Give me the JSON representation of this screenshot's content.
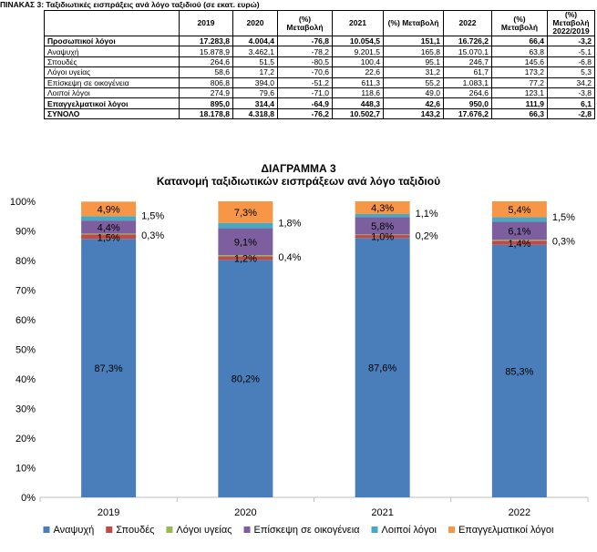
{
  "table": {
    "caption": "ΠΙΝΑΚΑΣ 3: Ταξιδιωτικές εισπράξεις ανά λόγο ταξιδιού (σε εκατ. ευρώ)",
    "headers": [
      "",
      "2019",
      "2020",
      "(%) Μεταβολή",
      "2021",
      "(%) Μεταβολή",
      "2022",
      "(%) Μεταβολή",
      "(%) Μεταβολή 2022/2019"
    ],
    "rows": [
      {
        "bold": true,
        "cells": [
          "Προσωπικοί λόγοι",
          "17.283,8",
          "4.004,4",
          "-76,8",
          "10.054,5",
          "151,1",
          "16.726,2",
          "66,4",
          "-3,2"
        ]
      },
      {
        "bold": false,
        "cells": [
          "Αναψυχή",
          "15.878,9",
          "3.462,1",
          "-78,2",
          "9.201,5",
          "165,8",
          "15.070,1",
          "63,8",
          "-5,1"
        ]
      },
      {
        "bold": false,
        "cells": [
          "Σπουδές",
          "264,6",
          "51,5",
          "-80,5",
          "100,4",
          "95,1",
          "246,7",
          "145,6",
          "-6,8"
        ]
      },
      {
        "bold": false,
        "cells": [
          "Λόγοι υγείας",
          "58,6",
          "17,2",
          "-70,6",
          "22,6",
          "31,2",
          "61,7",
          "173,2",
          "5,3"
        ]
      },
      {
        "bold": false,
        "cells": [
          "Επίσκεψη σε οικογένεια",
          "806,8",
          "394,0",
          "-51,2",
          "611,3",
          "55,2",
          "1.083,1",
          "77,2",
          "34,2"
        ]
      },
      {
        "bold": false,
        "cells": [
          "Λοιποί λόγοι",
          "274,9",
          "79,6",
          "-71,0",
          "118,6",
          "49,0",
          "264,6",
          "123,1",
          "-3,8"
        ]
      },
      {
        "bold": true,
        "cells": [
          "Επαγγελματικοί λόγοι",
          "895,0",
          "314,4",
          "-64,9",
          "448,3",
          "42,6",
          "950,0",
          "111,9",
          "6,1"
        ]
      },
      {
        "bold": true,
        "cells": [
          "ΣΥΝΟΛΟ",
          "18.178,8",
          "4.318,8",
          "-76,2",
          "10.502,7",
          "143,2",
          "17.676,2",
          "66,3",
          "-2,8"
        ]
      }
    ]
  },
  "chart_data": {
    "type": "bar",
    "stacked": true,
    "title": "ΔΙΑΓΡΑΜΜΑ 3",
    "subtitle": "Κατανομή ταξιδιωτικών εισπράξεων ανά λόγο ταξιδιού",
    "categories": [
      "2019",
      "2020",
      "2021",
      "2022"
    ],
    "ylim": [
      0,
      100
    ],
    "yticks": [
      "0%",
      "10%",
      "20%",
      "30%",
      "40%",
      "50%",
      "60%",
      "70%",
      "80%",
      "90%",
      "100%"
    ],
    "grid": false,
    "legend_position": "bottom",
    "series": [
      {
        "name": "Αναψυχή",
        "color": "#4a7ebb",
        "values": [
          87.3,
          80.2,
          87.6,
          85.3
        ],
        "labels": [
          "87,3%",
          "80,2%",
          "87,6%",
          "85,3%"
        ]
      },
      {
        "name": "Σπουδές",
        "color": "#be4b48",
        "values": [
          1.5,
          1.2,
          1.0,
          1.4
        ],
        "labels": [
          "1,5%",
          "1,2%",
          "1,0%",
          "1,4%"
        ]
      },
      {
        "name": "Λόγοι υγείας",
        "color": "#98b954",
        "values": [
          0.3,
          0.4,
          0.2,
          0.3
        ],
        "labels": [
          "0,3%",
          "0,4%",
          "0,2%",
          "0,3%"
        ]
      },
      {
        "name": "Επίσκεψη σε οικογένεια",
        "color": "#7d5fa0",
        "values": [
          4.4,
          9.1,
          5.8,
          6.1
        ],
        "labels": [
          "4,4%",
          "9,1%",
          "5,8%",
          "6,1%"
        ]
      },
      {
        "name": "Λοιποί λόγοι",
        "color": "#46aac4",
        "values": [
          1.5,
          1.8,
          1.1,
          1.5
        ],
        "labels": [
          "1,5%",
          "1,8%",
          "1,1%",
          "1,5%"
        ]
      },
      {
        "name": "Επαγγελματικοί λόγοι",
        "color": "#f79646",
        "values": [
          4.9,
          7.3,
          4.3,
          5.4
        ],
        "labels": [
          "4,9%",
          "7,3%",
          "4,3%",
          "5,4%"
        ]
      }
    ]
  }
}
